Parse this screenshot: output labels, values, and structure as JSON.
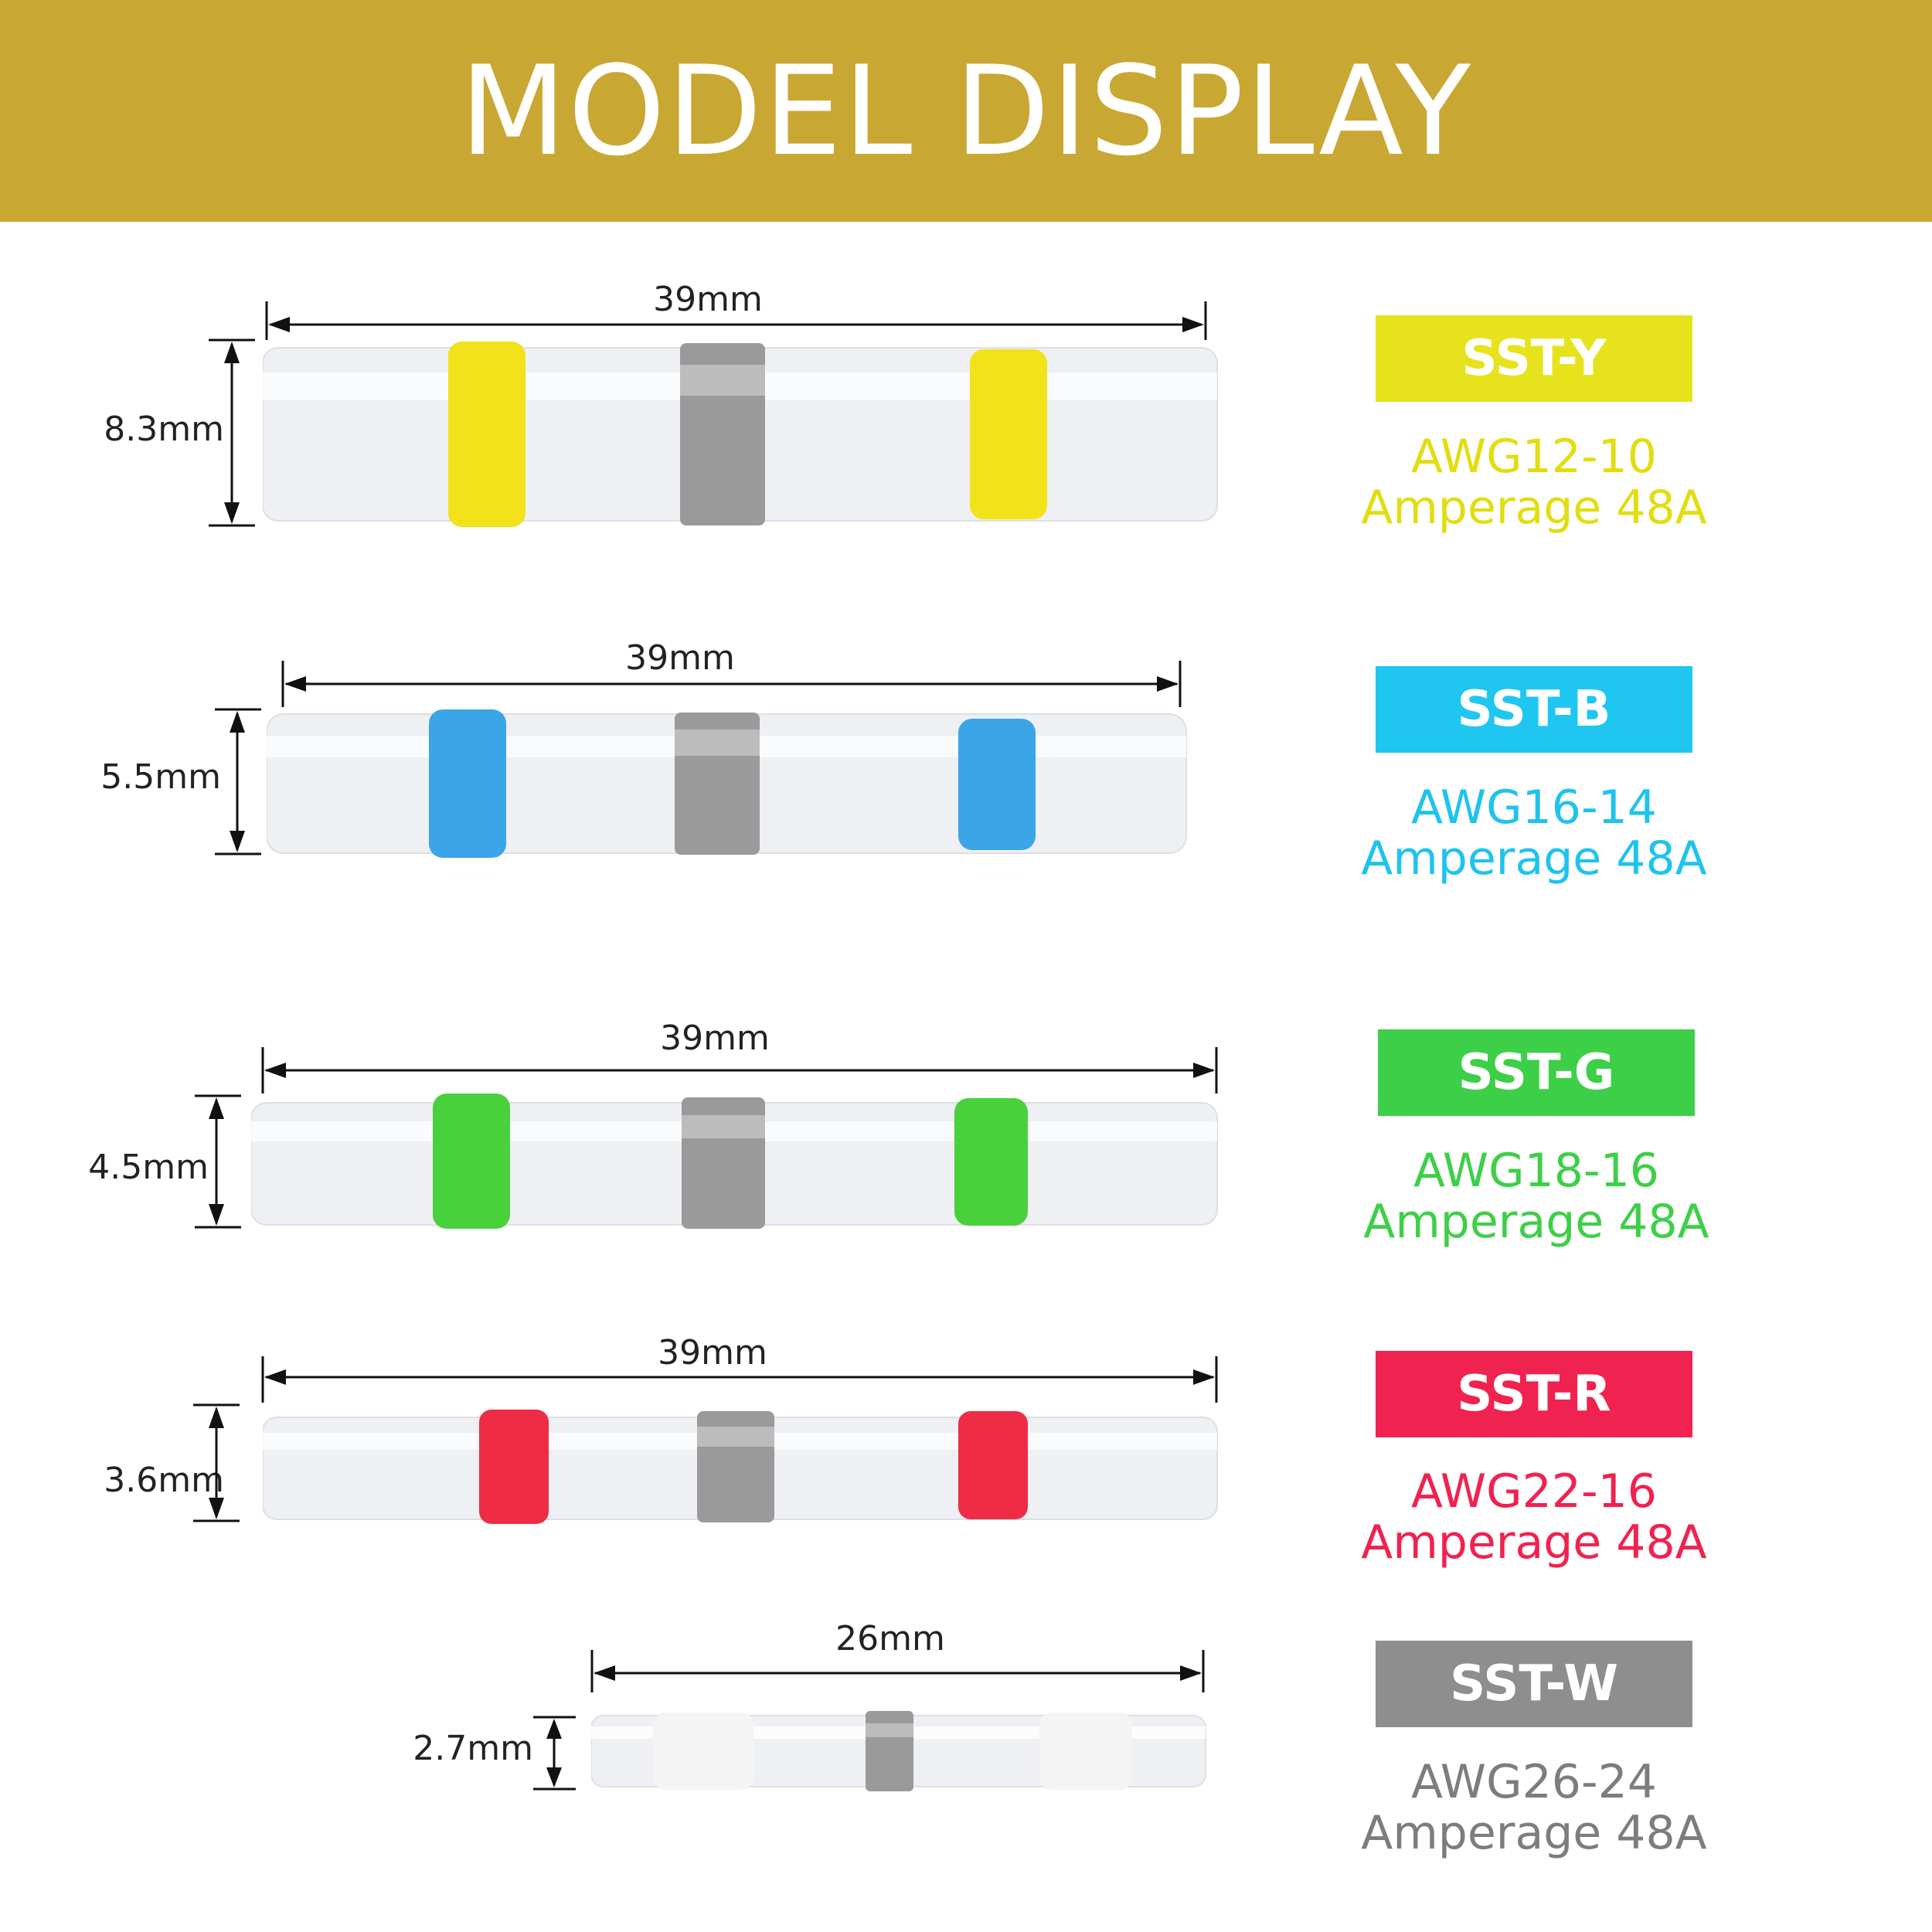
{
  "title": "MODEL DISPLAY",
  "colors": {
    "banner": "#c9a733",
    "metal": "#9a9a9a",
    "tube": "#eef0f3"
  },
  "products": [
    {
      "model": "SST-Y",
      "awg": "AWG12-10",
      "amperage": "Amperage 48A",
      "length": "39mm",
      "diameter": "8.3mm",
      "color": "#e6e31c",
      "text_color": "#e2dd10",
      "band_color": "#f2e21a"
    },
    {
      "model": "SST-B",
      "awg": "AWG16-14",
      "amperage": "Amperage 48A",
      "length": "39mm",
      "diameter": "5.5mm",
      "color": "#1fc7f0",
      "text_color": "#1ec3ee",
      "band_color": "#3aa6e8"
    },
    {
      "model": "SST-G",
      "awg": "AWG18-16",
      "amperage": "Amperage 48A",
      "length": "39mm",
      "diameter": "4.5mm",
      "color": "#3ecf48",
      "text_color": "#3ecf48",
      "band_color": "#49d13c"
    },
    {
      "model": "SST-R",
      "awg": "AWG22-16",
      "amperage": "Amperage 48A",
      "length": "39mm",
      "diameter": "3.6mm",
      "color": "#f0224f",
      "text_color": "#f0224f",
      "band_color": "#ef2c45"
    },
    {
      "model": "SST-W",
      "awg": "AWG26-24",
      "amperage": "Amperage 48A",
      "length": "26mm",
      "diameter": "2.7mm",
      "color": "#8e8e8e",
      "text_color": "#7d7d7d",
      "band_color": "#f4f4f4"
    }
  ]
}
